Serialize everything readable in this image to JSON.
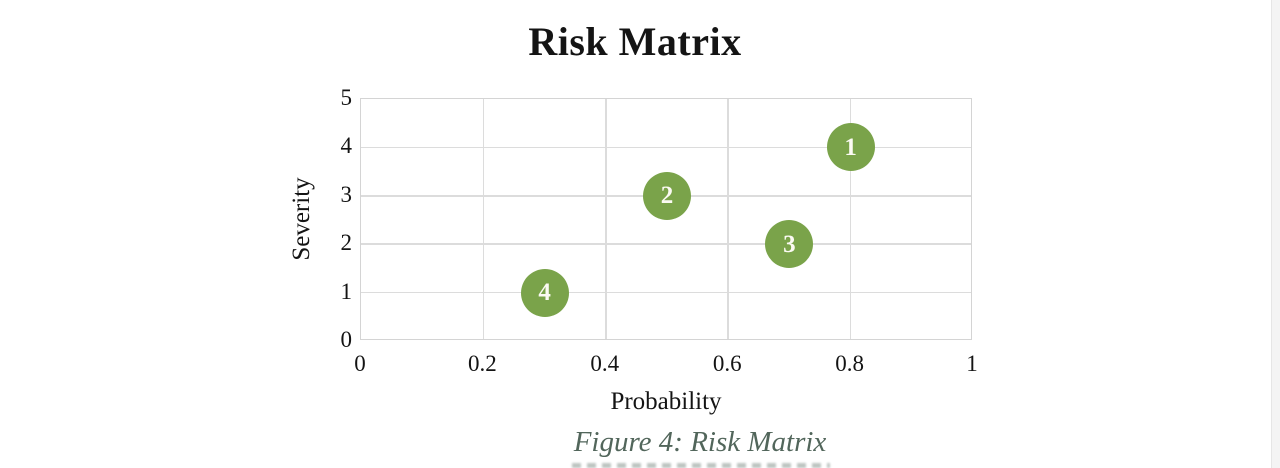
{
  "page": {
    "background": "#ffffff",
    "edge_strip_color": "#f4f4f4"
  },
  "figure_caption": {
    "text": "Figure 4: Risk Matrix",
    "color": "#52665b"
  },
  "chart_data": {
    "type": "scatter",
    "title": "Risk Matrix",
    "xlabel": "Probability",
    "ylabel": "Severity",
    "xlim": [
      0,
      1
    ],
    "ylim": [
      0,
      5
    ],
    "x_ticks": [
      {
        "value": 0,
        "label": "0"
      },
      {
        "value": 0.2,
        "label": "0.2"
      },
      {
        "value": 0.4,
        "label": "0.4"
      },
      {
        "value": 0.6,
        "label": "0.6"
      },
      {
        "value": 0.8,
        "label": "0.8"
      },
      {
        "value": 1,
        "label": "1"
      }
    ],
    "y_ticks": [
      {
        "value": 0,
        "label": "0"
      },
      {
        "value": 1,
        "label": "1"
      },
      {
        "value": 2,
        "label": "2"
      },
      {
        "value": 3,
        "label": "3"
      },
      {
        "value": 4,
        "label": "4"
      },
      {
        "value": 5,
        "label": "5"
      }
    ],
    "grid": true,
    "legend": "none",
    "marker_color": "#7aa34a",
    "marker_label_color": "#fbfaf3",
    "points": [
      {
        "label": "1",
        "x": 0.8,
        "y": 4
      },
      {
        "label": "2",
        "x": 0.5,
        "y": 3
      },
      {
        "label": "3",
        "x": 0.7,
        "y": 2
      },
      {
        "label": "4",
        "x": 0.3,
        "y": 1
      }
    ]
  }
}
